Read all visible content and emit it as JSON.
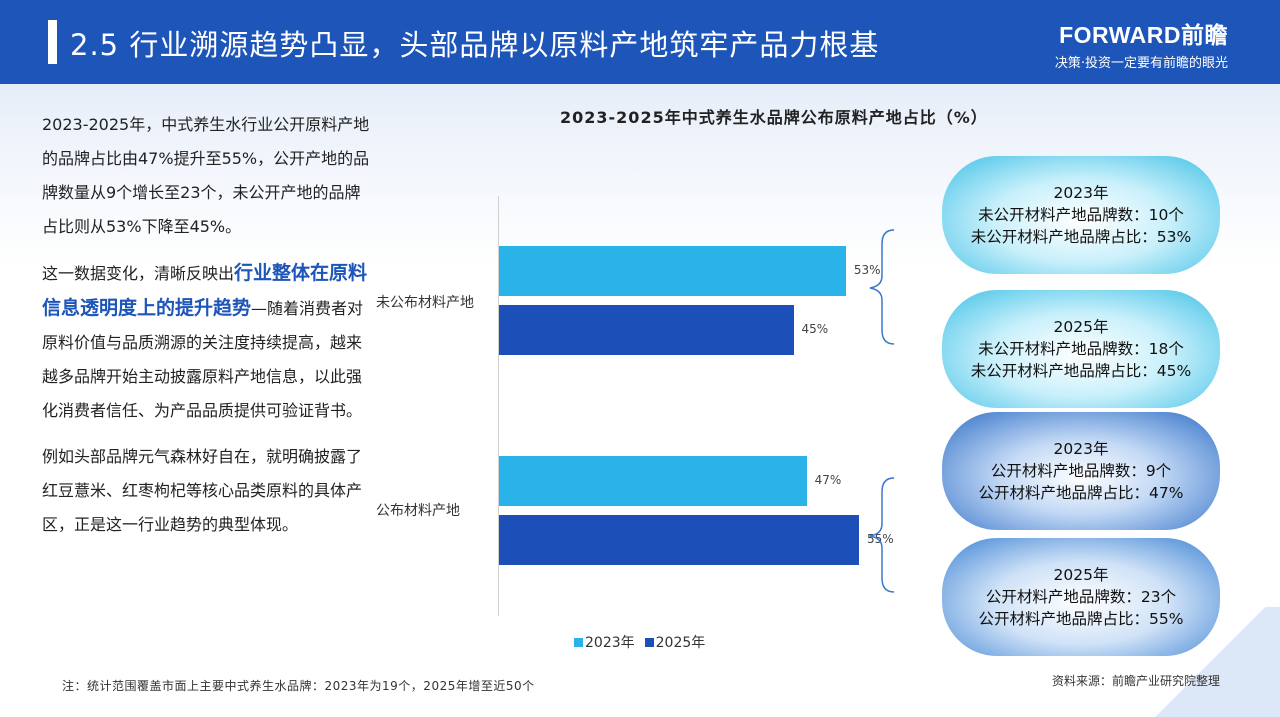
{
  "header": {
    "title": "2.5 行业溯源趋势凸显，头部品牌以原料产地筑牢产品力根基",
    "logo_main": "FORWARD前瞻",
    "logo_sub": "决策·投资一定要有前瞻的眼光"
  },
  "left": {
    "p1": "2023-2025年，中式养生水行业公开原料产地的品牌占比由47%提升至55%，公开产地的品牌数量从9个增长至23个，未公开产地的品牌占比则从53%下降至45%。",
    "p2_pre": "这一数据变化，清晰反映出",
    "p2_highlight": "行业整体在原料信息透明度上的提升趋势",
    "p2_post": "—随着消费者对原料价值与品质溯源的关注度持续提高，越来越多品牌开始主动披露原料产地信息，以此强化消费者信任、为产品品质提供可验证背书。",
    "p3": "例如头部品牌元气森林好自在，就明确披露了红豆薏米、红枣枸杞等核心品类原料的具体产区，正是这一行业趋势的典型体现。"
  },
  "chart_data": {
    "type": "bar",
    "orientation": "horizontal",
    "title": "2023-2025年中式养生水品牌公布原料产地占比（%）",
    "categories": [
      "未公布材料产地",
      "公布材料产地"
    ],
    "series": [
      {
        "name": "2023年",
        "values": [
          53,
          47
        ],
        "labels": [
          "53%",
          "47%"
        ],
        "color": "#29b3e8"
      },
      {
        "name": "2025年",
        "values": [
          45,
          55
        ],
        "labels": [
          "45%",
          "55%"
        ],
        "color": "#1d4fb8"
      }
    ],
    "xlim": [
      0,
      60
    ],
    "legend": "bottom",
    "grid": false
  },
  "callouts": [
    {
      "year": "2023年",
      "line1": "未公开材料产地品牌数：10个",
      "line2": "未公开材料产地品牌占比：53%"
    },
    {
      "year": "2025年",
      "line1": "未公开材料产地品牌数：18个",
      "line2": "未公开材料产地品牌占比：45%"
    },
    {
      "year": "2023年",
      "line1": "公开材料产地品牌数：9个",
      "line2": "公开材料产地品牌占比：47%"
    },
    {
      "year": "2025年",
      "line1": "公开材料产地品牌数：23个",
      "line2": "公开材料产地品牌占比：55%"
    }
  ],
  "footer": {
    "note": "注：统计范围覆盖市面上主要中式养生水品牌：2023年为19个，2025年增至近50个",
    "source": "资料来源：前瞻产业研究院整理"
  }
}
